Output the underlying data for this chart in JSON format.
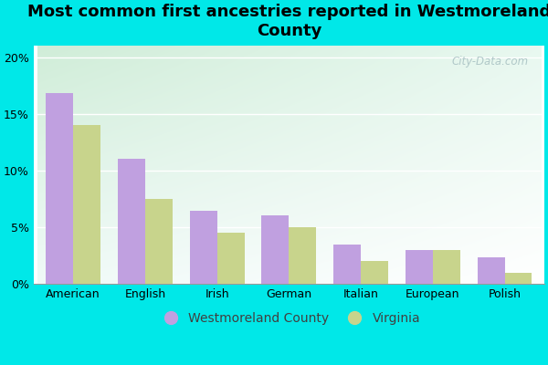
{
  "title": "Most common first ancestries reported in Westmoreland\nCounty",
  "categories": [
    "American",
    "English",
    "Irish",
    "German",
    "Italian",
    "European",
    "Polish"
  ],
  "westmoreland": [
    16.8,
    11.0,
    6.4,
    6.0,
    3.5,
    3.0,
    2.3
  ],
  "virginia": [
    14.0,
    7.5,
    4.5,
    5.0,
    2.0,
    3.0,
    1.0
  ],
  "bar_color_west": "#c0a0e0",
  "bar_color_va": "#c8d48c",
  "bg_outer": "#00e8e8",
  "ylim": [
    0,
    21
  ],
  "yticks": [
    0,
    5,
    10,
    15,
    20
  ],
  "ytick_labels": [
    "0%",
    "5%",
    "10%",
    "15%",
    "20%"
  ],
  "legend_west": "Westmoreland County",
  "legend_va": "Virginia",
  "bar_width": 0.38,
  "title_fontsize": 13,
  "axis_fontsize": 9,
  "legend_fontsize": 10,
  "watermark": "City-Data.com",
  "watermark_color": "#b0c8c8"
}
